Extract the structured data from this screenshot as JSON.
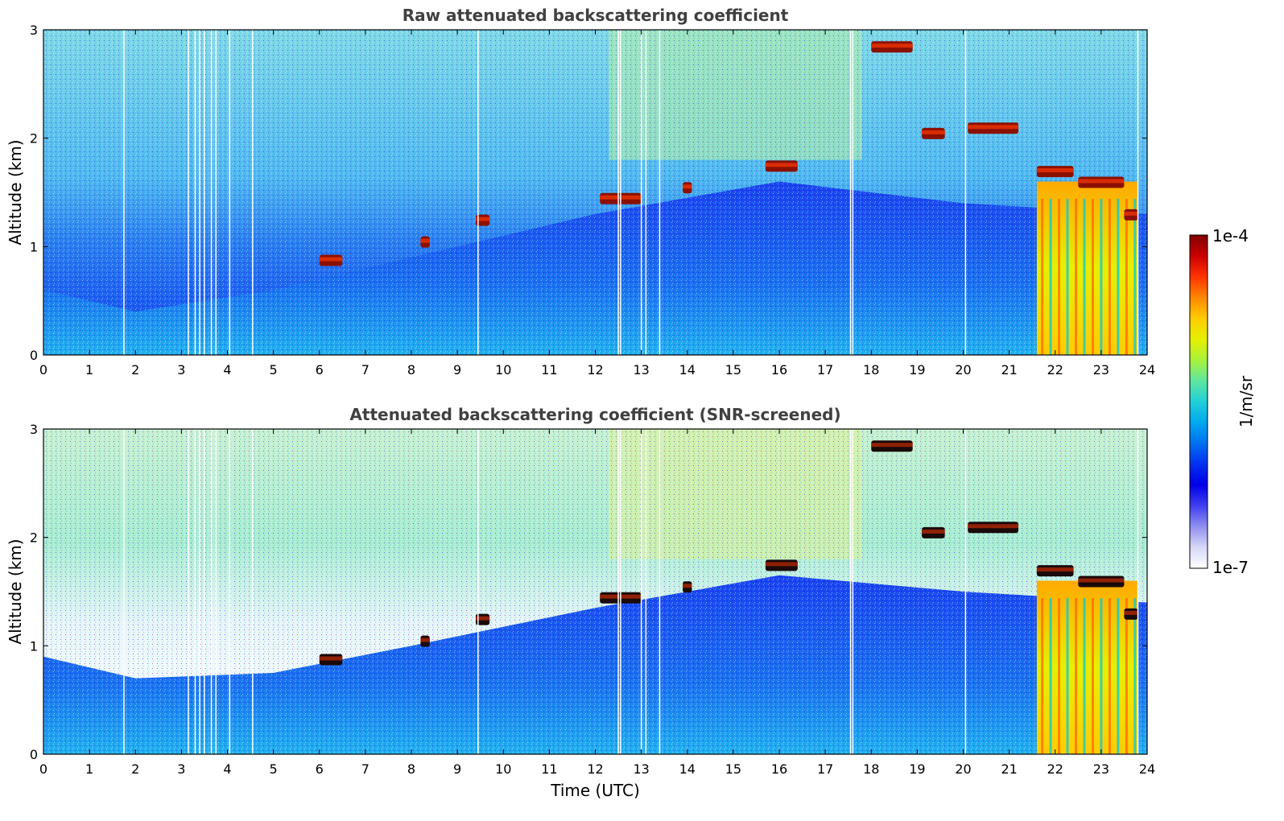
{
  "colorbar": {
    "top_label": "1e-4",
    "bottom_label": "1e-7",
    "unit_label": "1/m/sr",
    "stops": [
      "#7f0000",
      "#cc0000",
      "#ff3300",
      "#ff8800",
      "#ffcc00",
      "#e6f000",
      "#a8f23a",
      "#5ee6a0",
      "#20d0d8",
      "#00a8f0",
      "#0070f0",
      "#0030f0",
      "#0000e8",
      "#4040f0",
      "#9090f0",
      "#d8d8f8",
      "#ffffff"
    ]
  },
  "chart_data": [
    {
      "type": "heatmap",
      "title": "Raw attenuated backscattering coefficient",
      "ylabel": "Altitude (km)",
      "xlabel": "",
      "xlim": [
        0,
        24
      ],
      "ylim": [
        0,
        3
      ],
      "xticks": [
        "0",
        "1",
        "2",
        "3",
        "4",
        "5",
        "6",
        "7",
        "8",
        "9",
        "10",
        "11",
        "12",
        "13",
        "14",
        "15",
        "16",
        "17",
        "18",
        "19",
        "20",
        "21",
        "22",
        "23",
        "24"
      ],
      "yticks": [
        "0",
        "1",
        "2",
        "3"
      ],
      "mixing_layer_top_km": [
        [
          0,
          0.6
        ],
        [
          2,
          0.4
        ],
        [
          5,
          0.6
        ],
        [
          8,
          0.9
        ],
        [
          12,
          1.3
        ],
        [
          16,
          1.6
        ],
        [
          20,
          1.4
        ],
        [
          24,
          1.3
        ]
      ],
      "cloud_layers": [
        {
          "t_start": 6.0,
          "t_end": 6.5,
          "z_km": 0.88
        },
        {
          "t_start": 8.2,
          "t_end": 8.4,
          "z_km": 1.05
        },
        {
          "t_start": 9.4,
          "t_end": 9.7,
          "z_km": 1.25
        },
        {
          "t_start": 12.1,
          "t_end": 13.0,
          "z_km": 1.45
        },
        {
          "t_start": 13.9,
          "t_end": 14.1,
          "z_km": 1.55
        },
        {
          "t_start": 15.7,
          "t_end": 16.4,
          "z_km": 1.75
        },
        {
          "t_start": 18.0,
          "t_end": 18.9,
          "z_km": 2.85
        },
        {
          "t_start": 19.1,
          "t_end": 19.6,
          "z_km": 2.05
        },
        {
          "t_start": 20.1,
          "t_end": 21.2,
          "z_km": 2.1
        },
        {
          "t_start": 21.6,
          "t_end": 22.4,
          "z_km": 1.7
        },
        {
          "t_start": 22.5,
          "t_end": 23.5,
          "z_km": 1.6
        },
        {
          "t_start": 23.5,
          "t_end": 23.8,
          "z_km": 1.3
        }
      ],
      "rain_columns": [
        {
          "t_start": 21.6,
          "t_end": 23.8,
          "z_top_km": 1.6
        }
      ],
      "data_gaps_utc": [
        1.75,
        3.15,
        3.3,
        3.4,
        3.5,
        3.65,
        3.75,
        4.05,
        4.55,
        9.45,
        12.5,
        12.55,
        13.0,
        13.1,
        13.4,
        17.55,
        17.6,
        20.05,
        23.8
      ]
    },
    {
      "type": "heatmap",
      "title": "Attenuated backscattering coefficient (SNR-screened)",
      "ylabel": "Altitude (km)",
      "xlabel": "Time (UTC)",
      "xlim": [
        0,
        24
      ],
      "ylim": [
        0,
        3
      ],
      "xticks": [
        "0",
        "1",
        "2",
        "3",
        "4",
        "5",
        "6",
        "7",
        "8",
        "9",
        "10",
        "11",
        "12",
        "13",
        "14",
        "15",
        "16",
        "17",
        "18",
        "19",
        "20",
        "21",
        "22",
        "23",
        "24"
      ],
      "yticks": [
        "0",
        "1",
        "2",
        "3"
      ],
      "mixing_layer_top_km": [
        [
          0,
          0.9
        ],
        [
          2,
          0.7
        ],
        [
          5,
          0.75
        ],
        [
          8,
          1.0
        ],
        [
          12,
          1.35
        ],
        [
          16,
          1.65
        ],
        [
          20,
          1.5
        ],
        [
          24,
          1.4
        ]
      ],
      "cloud_layers": [
        {
          "t_start": 6.0,
          "t_end": 6.5,
          "z_km": 0.88
        },
        {
          "t_start": 8.2,
          "t_end": 8.4,
          "z_km": 1.05
        },
        {
          "t_start": 9.4,
          "t_end": 9.7,
          "z_km": 1.25
        },
        {
          "t_start": 12.1,
          "t_end": 13.0,
          "z_km": 1.45
        },
        {
          "t_start": 13.9,
          "t_end": 14.1,
          "z_km": 1.55
        },
        {
          "t_start": 15.7,
          "t_end": 16.4,
          "z_km": 1.75
        },
        {
          "t_start": 18.0,
          "t_end": 18.9,
          "z_km": 2.85
        },
        {
          "t_start": 19.1,
          "t_end": 19.6,
          "z_km": 2.05
        },
        {
          "t_start": 20.1,
          "t_end": 21.2,
          "z_km": 2.1
        },
        {
          "t_start": 21.6,
          "t_end": 22.4,
          "z_km": 1.7
        },
        {
          "t_start": 22.5,
          "t_end": 23.5,
          "z_km": 1.6
        },
        {
          "t_start": 23.5,
          "t_end": 23.8,
          "z_km": 1.3
        }
      ],
      "rain_columns": [
        {
          "t_start": 21.6,
          "t_end": 23.8,
          "z_top_km": 1.6
        }
      ],
      "data_gaps_utc": [
        1.75,
        3.15,
        3.3,
        3.4,
        3.5,
        3.65,
        3.75,
        4.05,
        4.55,
        9.45,
        12.5,
        12.55,
        13.0,
        13.1,
        13.4,
        17.55,
        17.6,
        20.05,
        23.8
      ]
    }
  ]
}
